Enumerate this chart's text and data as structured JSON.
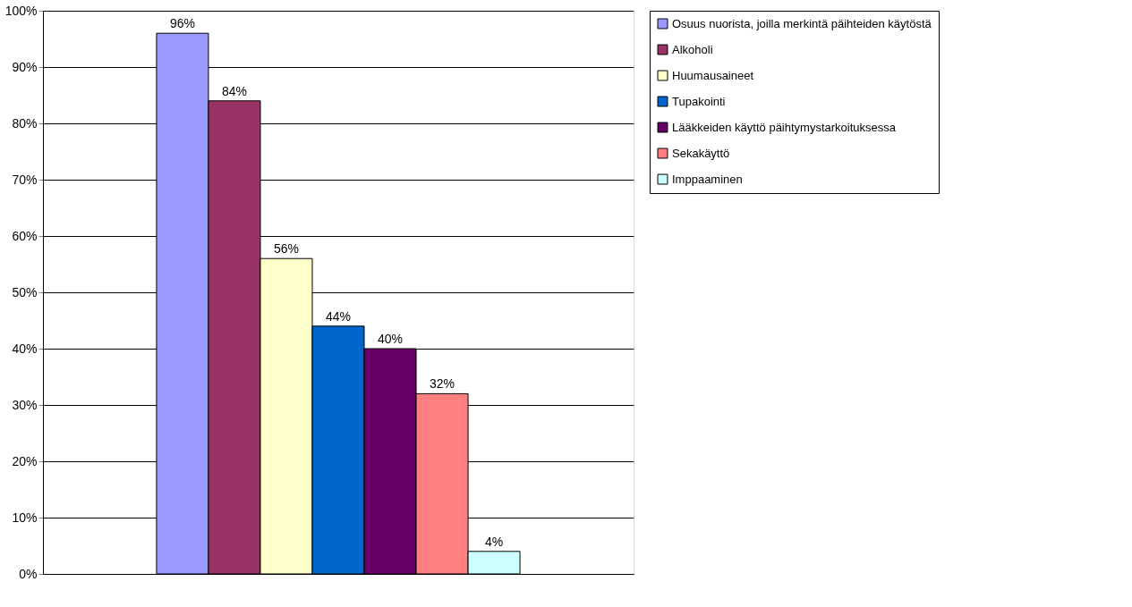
{
  "chart_data": {
    "type": "bar",
    "categories": [
      null
    ],
    "series": [
      {
        "name": "Osuus nuorista, joilla merkintä päihteiden käytöstä",
        "color": "#9999ff",
        "values": [
          96
        ],
        "value_labels": [
          "96%"
        ]
      },
      {
        "name": "Alkoholi",
        "color": "#993366",
        "values": [
          84
        ],
        "value_labels": [
          "84%"
        ]
      },
      {
        "name": "Huumausaineet",
        "color": "#ffffcc",
        "values": [
          56
        ],
        "value_labels": [
          "56%"
        ]
      },
      {
        "name": "Tupakointi",
        "color": "#0066cc",
        "values": [
          44
        ],
        "value_labels": [
          "44%"
        ]
      },
      {
        "name": "Lääkkeiden käyttö päihtymystarkoituksessa",
        "color": "#660066",
        "values": [
          40
        ],
        "value_labels": [
          "40%"
        ]
      },
      {
        "name": "Sekakäyttö",
        "color": "#ff8080",
        "values": [
          32
        ],
        "value_labels": [
          "32%"
        ]
      },
      {
        "name": "Imppaaminen",
        "color": "#ccffff",
        "values": [
          4
        ],
        "value_labels": [
          "4%"
        ]
      }
    ],
    "ylim": [
      0,
      100
    ],
    "yticks": [
      {
        "value": 0,
        "label": "0%"
      },
      {
        "value": 10,
        "label": "10%"
      },
      {
        "value": 20,
        "label": "20%"
      },
      {
        "value": 30,
        "label": "30%"
      },
      {
        "value": 40,
        "label": "40%"
      },
      {
        "value": 50,
        "label": "50%"
      },
      {
        "value": 60,
        "label": "60%"
      },
      {
        "value": 70,
        "label": "70%"
      },
      {
        "value": 80,
        "label": "80%"
      },
      {
        "value": 90,
        "label": "90%"
      },
      {
        "value": 100,
        "label": "100%"
      }
    ],
    "grid": "y",
    "legend": "right"
  }
}
